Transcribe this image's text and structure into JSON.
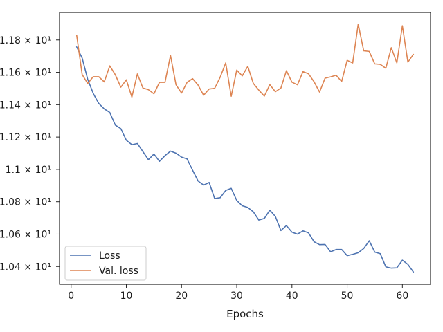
{
  "chart_data": {
    "type": "line",
    "title": "",
    "xlabel": "Epochs",
    "ylabel": "",
    "xlim": [
      -2.1,
      65.1
    ],
    "ylim": [
      10.29,
      11.97
    ],
    "xticks": [
      0,
      10,
      20,
      30,
      40,
      50,
      60
    ],
    "xtick_labels": [
      "0",
      "10",
      "20",
      "30",
      "40",
      "50",
      "60"
    ],
    "yticks": [
      10.4,
      10.6,
      10.8,
      11.0,
      11.2,
      11.4,
      11.6,
      11.8
    ],
    "ytick_labels": [
      "1.04 × 10¹",
      "1.06 × 10¹",
      "1.08 × 10¹",
      "1.1 × 10¹",
      "1.12 × 10¹",
      "1.14 × 10¹",
      "1.16 × 10¹",
      "1.18 × 10¹"
    ],
    "grid": false,
    "legend_position": "lower-left",
    "x": [
      1,
      2,
      3,
      4,
      5,
      6,
      7,
      8,
      9,
      10,
      11,
      12,
      13,
      14,
      15,
      16,
      17,
      18,
      19,
      20,
      21,
      22,
      23,
      24,
      25,
      26,
      27,
      28,
      29,
      30,
      31,
      32,
      33,
      34,
      35,
      36,
      37,
      38,
      39,
      40,
      41,
      42,
      43,
      44,
      45,
      46,
      47,
      48,
      49,
      50,
      51,
      52,
      53,
      54,
      55,
      56,
      57,
      58,
      59,
      60,
      61,
      62
    ],
    "series": [
      {
        "name": "Loss",
        "color": "#4c72b0",
        "values": [
          11.757,
          11.688,
          11.557,
          11.47,
          11.408,
          11.374,
          11.352,
          11.274,
          11.252,
          11.18,
          11.153,
          11.16,
          11.11,
          11.06,
          11.095,
          11.05,
          11.085,
          11.113,
          11.1,
          11.076,
          11.065,
          10.995,
          10.928,
          10.903,
          10.919,
          10.82,
          10.825,
          10.87,
          10.883,
          10.808,
          10.775,
          10.765,
          10.738,
          10.687,
          10.697,
          10.748,
          10.709,
          10.622,
          10.653,
          10.612,
          10.6,
          10.62,
          10.608,
          10.553,
          10.535,
          10.536,
          10.491,
          10.505,
          10.505,
          10.467,
          10.475,
          10.485,
          10.511,
          10.559,
          10.489,
          10.479,
          10.398,
          10.39,
          10.392,
          10.439,
          10.413,
          10.366
        ]
      },
      {
        "name": "Val. loss",
        "color": "#dd8452",
        "values": [
          11.83,
          11.586,
          11.531,
          11.573,
          11.573,
          11.541,
          11.64,
          11.585,
          11.508,
          11.554,
          11.447,
          11.59,
          11.503,
          11.493,
          11.467,
          11.538,
          11.538,
          11.704,
          11.523,
          11.472,
          11.538,
          11.561,
          11.521,
          11.458,
          11.497,
          11.501,
          11.57,
          11.658,
          11.452,
          11.614,
          11.578,
          11.637,
          11.532,
          11.49,
          11.453,
          11.524,
          11.48,
          11.503,
          11.61,
          11.539,
          11.523,
          11.604,
          11.591,
          11.542,
          11.478,
          11.564,
          11.572,
          11.582,
          11.543,
          11.674,
          11.658,
          11.898,
          11.733,
          11.729,
          11.652,
          11.649,
          11.625,
          11.752,
          11.658,
          11.888,
          11.663,
          11.711
        ]
      }
    ]
  }
}
